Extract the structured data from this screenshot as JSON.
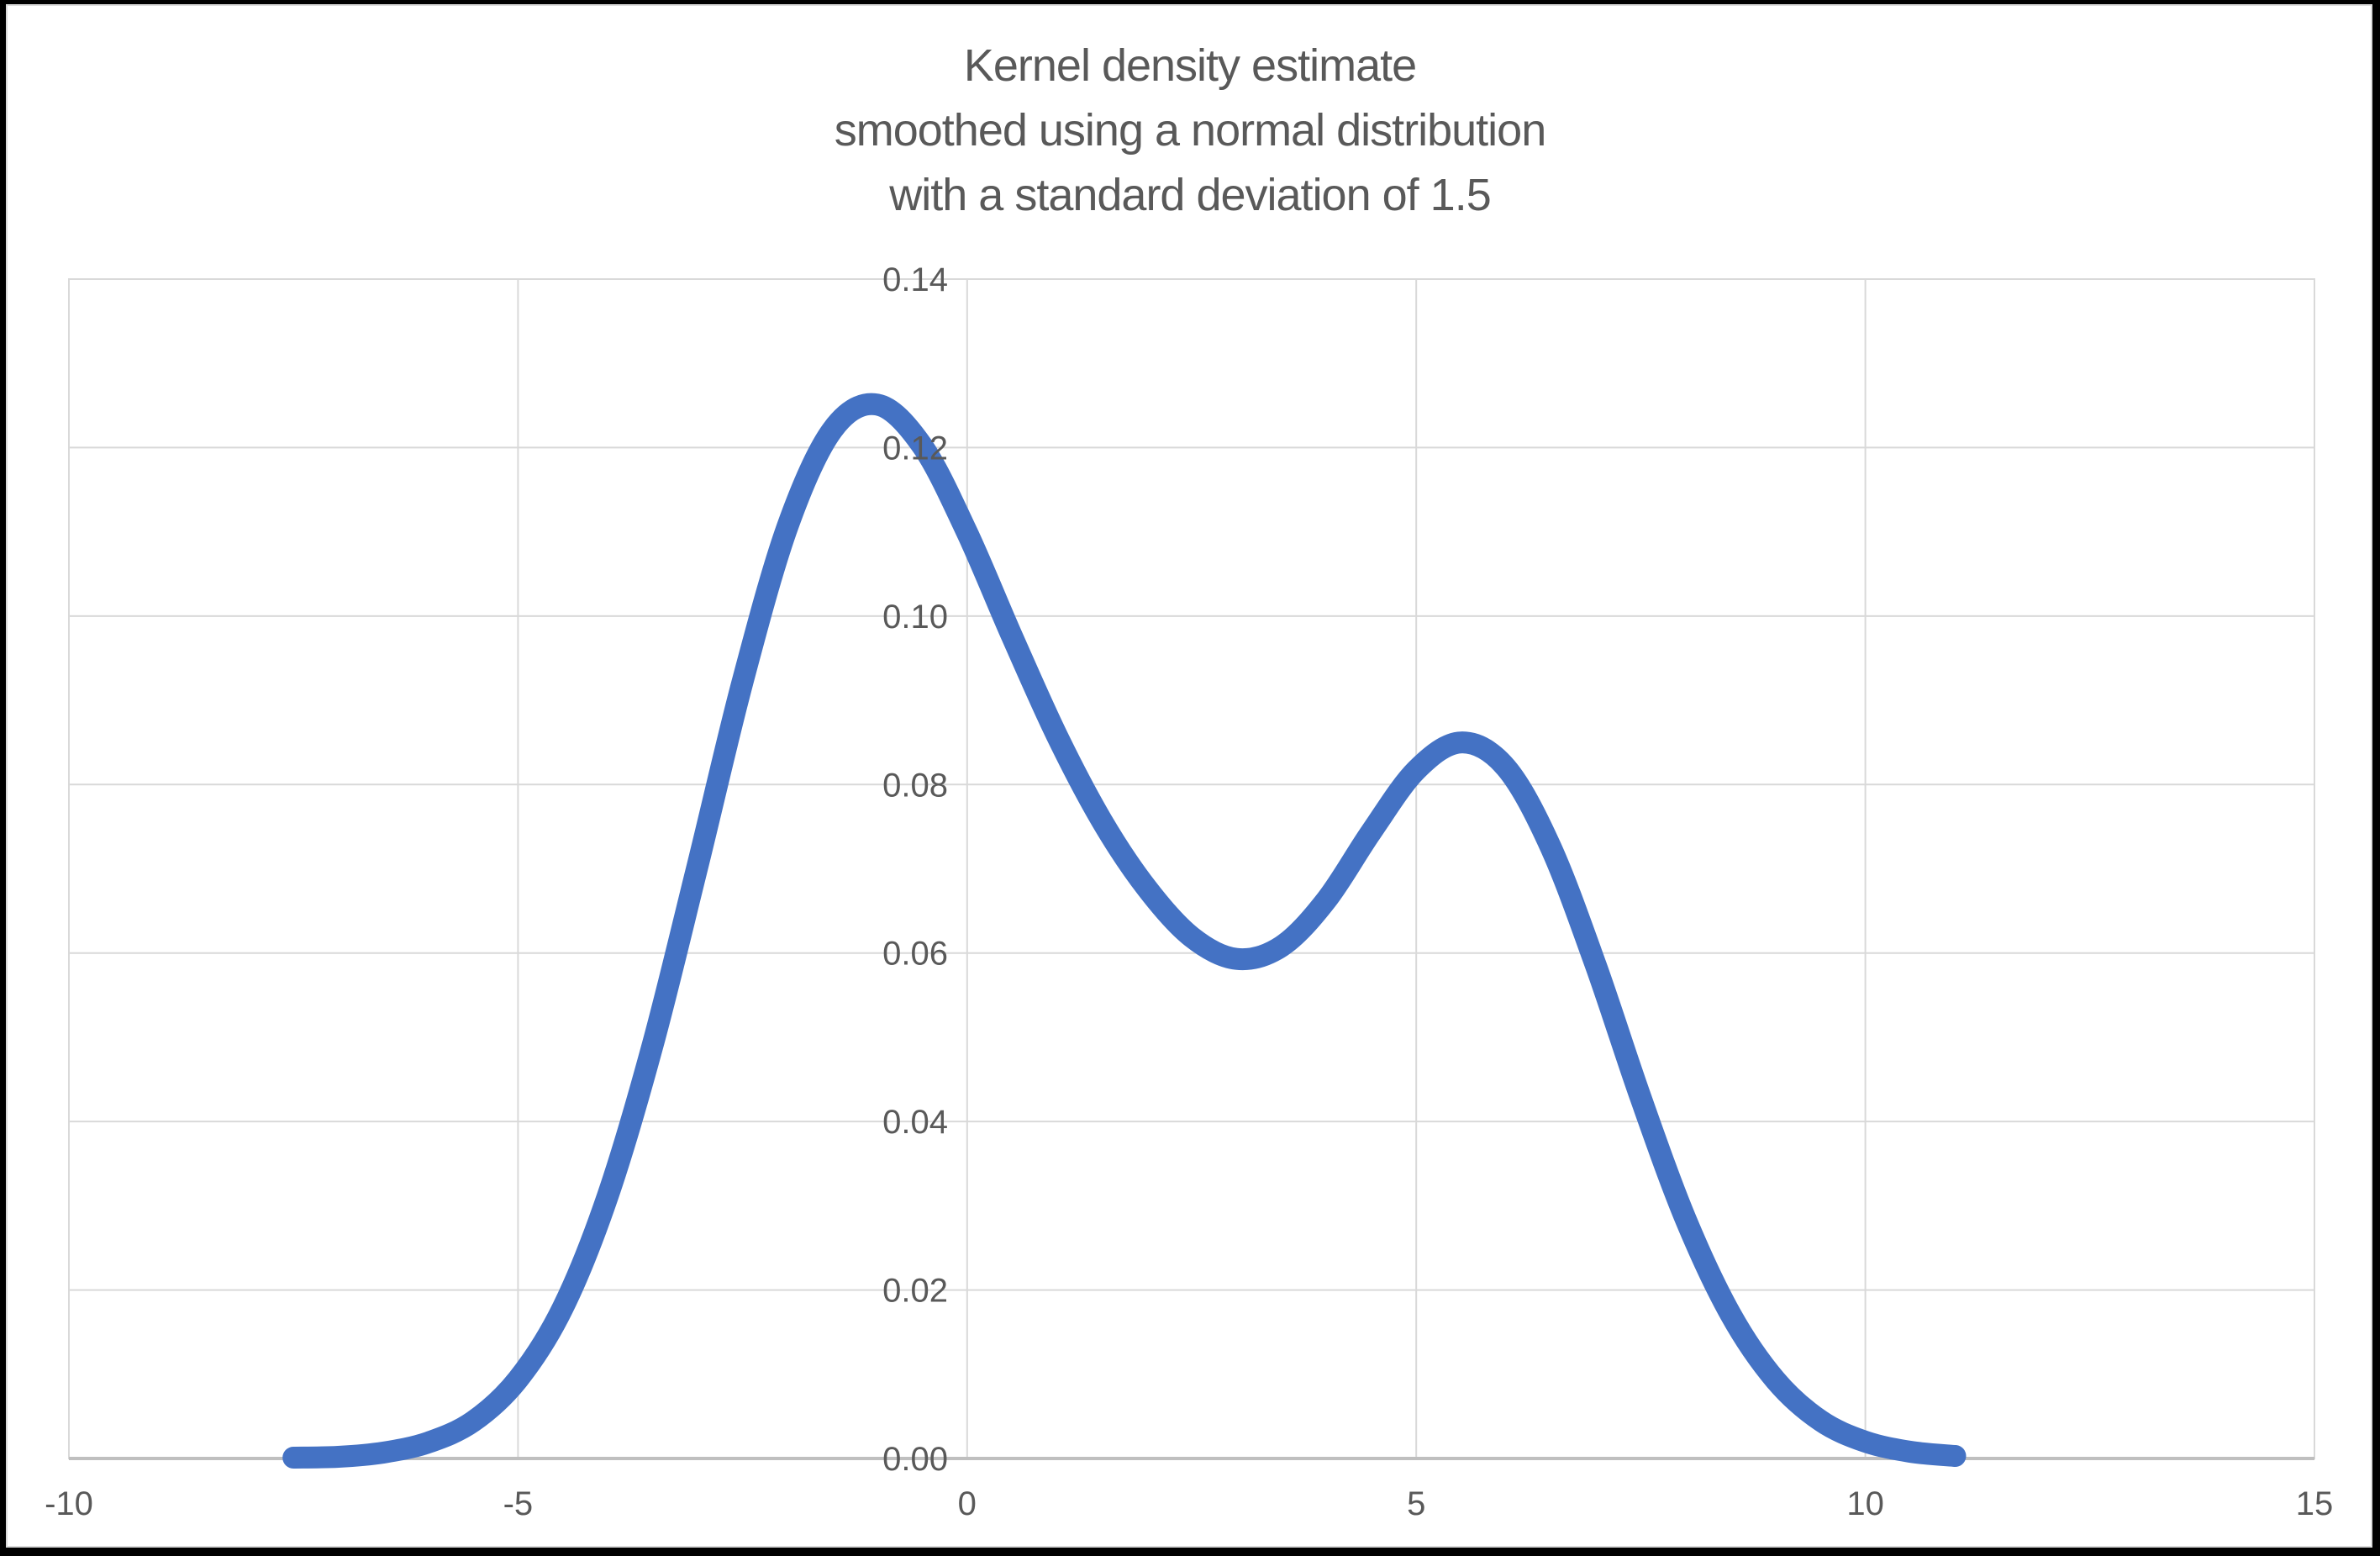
{
  "chart_data": {
    "type": "line",
    "title": "Kernel density estimate smoothed using a normal distribution with a standard deviation of 1.5",
    "title_lines": [
      "Kernel density estimate",
      "smoothed using a normal distribution",
      "with a standard deviation of 1.5"
    ],
    "xlabel": "",
    "ylabel": "",
    "xlim": [
      -10,
      15
    ],
    "ylim": [
      0,
      0.14
    ],
    "grid": true,
    "legend": "none",
    "x_tick_values": [
      -10,
      -5,
      0,
      5,
      10,
      15
    ],
    "x_tick_labels": [
      "-10",
      "-5",
      "0",
      "5",
      "10",
      "15"
    ],
    "y_tick_values": [
      0,
      0.02,
      0.04,
      0.06,
      0.08,
      0.1,
      0.12,
      0.14
    ],
    "y_tick_labels": [
      "0.00",
      "0.02",
      "0.04",
      "0.06",
      "0.08",
      "0.10",
      "0.12",
      "0.14"
    ],
    "series": [
      {
        "color": "#4472C4",
        "x": [
          -7.5,
          -7,
          -6.5,
          -6,
          -5.5,
          -5,
          -4.5,
          -4,
          -3.5,
          -3,
          -2.5,
          -2,
          -1.5,
          -1,
          -0.5,
          0,
          0.5,
          1,
          1.5,
          2,
          2.5,
          3,
          3.5,
          4,
          4.5,
          5,
          5.5,
          6,
          6.5,
          7,
          7.5,
          8,
          8.5,
          9,
          9.5,
          10,
          10.5,
          11
        ],
        "y": [
          0.0001,
          0.0002,
          0.0007,
          0.0019,
          0.0044,
          0.0094,
          0.0179,
          0.0312,
          0.0491,
          0.0704,
          0.0922,
          0.1106,
          0.1221,
          0.1251,
          0.1202,
          0.1099,
          0.0976,
          0.0858,
          0.0757,
          0.0677,
          0.0619,
          0.0593,
          0.0608,
          0.0663,
          0.0744,
          0.0817,
          0.085,
          0.082,
          0.0725,
          0.0585,
          0.0428,
          0.0284,
          0.0171,
          0.0093,
          0.0045,
          0.002,
          0.0008,
          0.0003
        ],
        "annotations": {
          "left_peak": {
            "x": -1,
            "y": 0.125
          },
          "valley": {
            "x": 3,
            "y": 0.059
          },
          "right_peak": {
            "x": 5.5,
            "y": 0.085
          }
        }
      }
    ]
  },
  "colors": {
    "curve": "#4472C4",
    "gridline": "#D9D9D9",
    "axis_line": "#BFBFBF",
    "plot_border": "#D9D9D9",
    "label_text": "#595959",
    "chart_background": "#FFFFFF",
    "frame": "#000000"
  }
}
